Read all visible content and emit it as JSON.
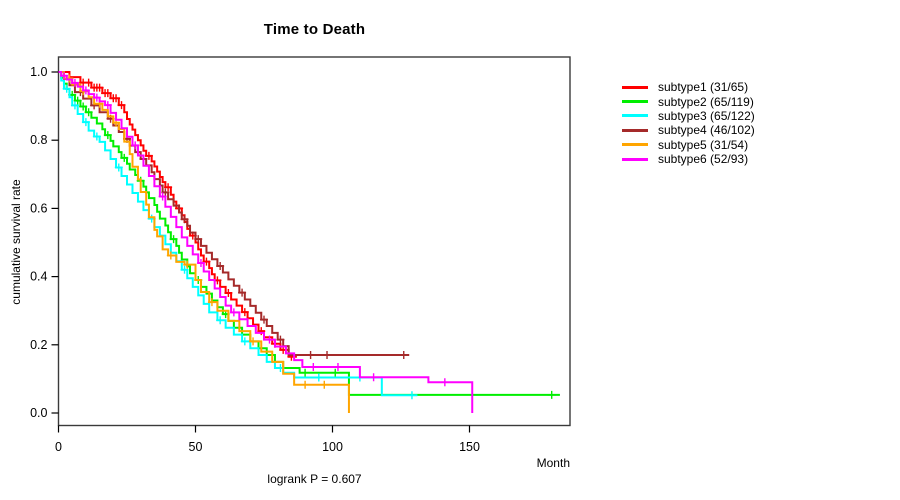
{
  "title": "Time to Death",
  "footnote": "logrank P = 0.607",
  "axes": {
    "x_label": "Month",
    "y_label": "cumulative survival rate"
  },
  "colors": {
    "subtype1": "#FF0000",
    "subtype2": "#00EE00",
    "subtype3": "#00FFFF",
    "subtype4": "#A52A2A",
    "subtype5": "#FFA500",
    "subtype6": "#FF00FF",
    "axis": "#3a3a3a",
    "text": "#000000",
    "background": "#ffffff"
  },
  "chart_data": {
    "type": "line",
    "subtype": "kaplan-meier-step",
    "title": "Time to Death",
    "xlabel": "Month",
    "ylabel": "cumulative survival rate",
    "annotation": "logrank P = 0.607",
    "xlim": [
      0,
      186
    ],
    "ylim": [
      0,
      1.0
    ],
    "x_ticks": [
      0,
      50,
      100,
      150
    ],
    "y_ticks": [
      0.0,
      0.2,
      0.4,
      0.6,
      0.8,
      1.0
    ],
    "grid": false,
    "legend_position": "right",
    "series": [
      {
        "name": "subtype1 (31/65)",
        "color": "#FF0000",
        "points": [
          [
            0,
            1
          ],
          [
            4,
            0.985
          ],
          [
            8,
            0.969
          ],
          [
            12,
            0.954
          ],
          [
            16,
            0.938
          ],
          [
            19,
            0.923
          ],
          [
            22,
            0.903
          ],
          [
            24,
            0.882
          ],
          [
            25,
            0.862
          ],
          [
            26,
            0.846
          ],
          [
            27,
            0.831
          ],
          [
            28,
            0.815
          ],
          [
            29,
            0.8
          ],
          [
            30,
            0.785
          ],
          [
            31,
            0.769
          ],
          [
            32,
            0.754
          ],
          [
            34,
            0.738
          ],
          [
            35,
            0.723
          ],
          [
            36,
            0.708
          ],
          [
            37,
            0.692
          ],
          [
            38,
            0.677
          ],
          [
            39,
            0.662
          ],
          [
            41,
            0.64
          ],
          [
            42,
            0.62
          ],
          [
            43,
            0.6
          ],
          [
            45,
            0.58
          ],
          [
            46,
            0.56
          ],
          [
            47,
            0.54
          ],
          [
            48,
            0.52
          ],
          [
            50,
            0.5
          ],
          [
            51,
            0.48
          ],
          [
            52,
            0.462
          ],
          [
            53,
            0.444
          ],
          [
            55,
            0.425
          ],
          [
            56,
            0.407
          ],
          [
            57,
            0.389
          ],
          [
            59,
            0.37
          ],
          [
            61,
            0.352
          ],
          [
            63,
            0.333
          ],
          [
            65,
            0.315
          ],
          [
            67,
            0.296
          ],
          [
            69,
            0.278
          ],
          [
            71,
            0.259
          ],
          [
            73,
            0.24
          ],
          [
            75,
            0.222
          ],
          [
            78,
            0.203
          ],
          [
            81,
            0.185
          ],
          [
            84,
            0.165
          ],
          [
            87,
            0.165
          ]
        ],
        "censors": [
          9,
          11,
          13,
          14,
          15,
          17,
          18,
          20,
          21,
          23,
          33,
          40,
          44,
          49,
          54,
          58,
          62,
          68,
          74,
          79,
          82,
          85
        ]
      },
      {
        "name": "subtype2 (65/119)",
        "color": "#00EE00",
        "points": [
          [
            0,
            1
          ],
          [
            1,
            0.983
          ],
          [
            2,
            0.966
          ],
          [
            3,
            0.95
          ],
          [
            4,
            0.933
          ],
          [
            6,
            0.916
          ],
          [
            8,
            0.899
          ],
          [
            10,
            0.882
          ],
          [
            12,
            0.866
          ],
          [
            14,
            0.849
          ],
          [
            16,
            0.832
          ],
          [
            17,
            0.815
          ],
          [
            19,
            0.798
          ],
          [
            20,
            0.782
          ],
          [
            22,
            0.765
          ],
          [
            23,
            0.748
          ],
          [
            25,
            0.731
          ],
          [
            26,
            0.714
          ],
          [
            28,
            0.698
          ],
          [
            29,
            0.681
          ],
          [
            31,
            0.664
          ],
          [
            32,
            0.647
          ],
          [
            33,
            0.63
          ],
          [
            35,
            0.61
          ],
          [
            36,
            0.59
          ],
          [
            37,
            0.57
          ],
          [
            39,
            0.55
          ],
          [
            40,
            0.53
          ],
          [
            41,
            0.51
          ],
          [
            43,
            0.49
          ],
          [
            44,
            0.47
          ],
          [
            45,
            0.45
          ],
          [
            47,
            0.43
          ],
          [
            48,
            0.41
          ],
          [
            50,
            0.39
          ],
          [
            52,
            0.37
          ],
          [
            54,
            0.35
          ],
          [
            56,
            0.33
          ],
          [
            58,
            0.31
          ],
          [
            60,
            0.29
          ],
          [
            62,
            0.27
          ],
          [
            64,
            0.25
          ],
          [
            67,
            0.23
          ],
          [
            70,
            0.21
          ],
          [
            73,
            0.19
          ],
          [
            76,
            0.17
          ],
          [
            79,
            0.15
          ],
          [
            82,
            0.132
          ],
          [
            88,
            0.118
          ],
          [
            106,
            0.053
          ],
          [
            183,
            0.053
          ]
        ],
        "censors": [
          5,
          7,
          9,
          11,
          18,
          24,
          30,
          42,
          51,
          61,
          74,
          90,
          101,
          180
        ]
      },
      {
        "name": "subtype3 (65/122)",
        "color": "#00FFFF",
        "points": [
          [
            0,
            1
          ],
          [
            1,
            0.975
          ],
          [
            2,
            0.951
          ],
          [
            4,
            0.926
          ],
          [
            5,
            0.902
          ],
          [
            7,
            0.877
          ],
          [
            9,
            0.853
          ],
          [
            11,
            0.828
          ],
          [
            13,
            0.811
          ],
          [
            15,
            0.795
          ],
          [
            17,
            0.77
          ],
          [
            19,
            0.745
          ],
          [
            21,
            0.72
          ],
          [
            23,
            0.695
          ],
          [
            25,
            0.67
          ],
          [
            27,
            0.645
          ],
          [
            29,
            0.62
          ],
          [
            31,
            0.595
          ],
          [
            33,
            0.57
          ],
          [
            35,
            0.545
          ],
          [
            37,
            0.52
          ],
          [
            39,
            0.495
          ],
          [
            41,
            0.47
          ],
          [
            43,
            0.445
          ],
          [
            45,
            0.42
          ],
          [
            47,
            0.395
          ],
          [
            49,
            0.37
          ],
          [
            51,
            0.345
          ],
          [
            53,
            0.32
          ],
          [
            55,
            0.295
          ],
          [
            58,
            0.272
          ],
          [
            61,
            0.25
          ],
          [
            64,
            0.23
          ],
          [
            67,
            0.21
          ],
          [
            70,
            0.19
          ],
          [
            73,
            0.17
          ],
          [
            76,
            0.15
          ],
          [
            79,
            0.132
          ],
          [
            82,
            0.118
          ],
          [
            86,
            0.104
          ],
          [
            118,
            0.052
          ],
          [
            131,
            0.052
          ]
        ],
        "censors": [
          3,
          6,
          10,
          14,
          22,
          34,
          46,
          59,
          68,
          81,
          95,
          110,
          129
        ]
      },
      {
        "name": "subtype4 (46/102)",
        "color": "#A52A2A",
        "points": [
          [
            0,
            1
          ],
          [
            2,
            0.98
          ],
          [
            4,
            0.961
          ],
          [
            6,
            0.941
          ],
          [
            9,
            0.922
          ],
          [
            12,
            0.902
          ],
          [
            15,
            0.882
          ],
          [
            18,
            0.863
          ],
          [
            20,
            0.843
          ],
          [
            22,
            0.824
          ],
          [
            24,
            0.804
          ],
          [
            26,
            0.784
          ],
          [
            28,
            0.765
          ],
          [
            30,
            0.745
          ],
          [
            32,
            0.726
          ],
          [
            34,
            0.706
          ],
          [
            35,
            0.686
          ],
          [
            37,
            0.667
          ],
          [
            38,
            0.647
          ],
          [
            40,
            0.627
          ],
          [
            42,
            0.608
          ],
          [
            44,
            0.588
          ],
          [
            45,
            0.568
          ],
          [
            47,
            0.549
          ],
          [
            48,
            0.529
          ],
          [
            50,
            0.51
          ],
          [
            52,
            0.49
          ],
          [
            54,
            0.47
          ],
          [
            56,
            0.451
          ],
          [
            58,
            0.431
          ],
          [
            60,
            0.412
          ],
          [
            62,
            0.392
          ],
          [
            64,
            0.373
          ],
          [
            66,
            0.353
          ],
          [
            68,
            0.333
          ],
          [
            70,
            0.314
          ],
          [
            72,
            0.294
          ],
          [
            74,
            0.274
          ],
          [
            76,
            0.255
          ],
          [
            78,
            0.235
          ],
          [
            80,
            0.215
          ],
          [
            82,
            0.196
          ],
          [
            84,
            0.17
          ],
          [
            128,
            0.17
          ]
        ],
        "censors": [
          8,
          13,
          19,
          25,
          31,
          39,
          46,
          51,
          59,
          67,
          75,
          81,
          92,
          98,
          126
        ]
      },
      {
        "name": "subtype5 (31/54)",
        "color": "#FFA500",
        "points": [
          [
            0,
            1
          ],
          [
            2,
            0.981
          ],
          [
            5,
            0.963
          ],
          [
            8,
            0.944
          ],
          [
            11,
            0.926
          ],
          [
            13,
            0.907
          ],
          [
            16,
            0.889
          ],
          [
            18,
            0.87
          ],
          [
            20,
            0.851
          ],
          [
            22,
            0.833
          ],
          [
            24,
            0.796
          ],
          [
            26,
            0.759
          ],
          [
            27,
            0.722
          ],
          [
            29,
            0.685
          ],
          [
            30,
            0.648
          ],
          [
            32,
            0.611
          ],
          [
            33,
            0.574
          ],
          [
            35,
            0.537
          ],
          [
            36,
            0.518
          ],
          [
            38,
            0.48
          ],
          [
            40,
            0.462
          ],
          [
            43,
            0.443
          ],
          [
            46,
            0.435
          ],
          [
            50,
            0.39
          ],
          [
            52,
            0.355
          ],
          [
            55,
            0.325
          ],
          [
            58,
            0.3
          ],
          [
            62,
            0.27
          ],
          [
            66,
            0.24
          ],
          [
            70,
            0.21
          ],
          [
            74,
            0.18
          ],
          [
            78,
            0.15
          ],
          [
            82,
            0.115
          ],
          [
            86,
            0.083
          ],
          [
            106,
            0.0
          ]
        ],
        "censors": [
          4,
          9,
          15,
          21,
          41,
          47,
          56,
          71,
          90,
          97
        ]
      },
      {
        "name": "subtype6 (52/93)",
        "color": "#FF00FF",
        "points": [
          [
            0,
            1
          ],
          [
            1,
            0.989
          ],
          [
            3,
            0.978
          ],
          [
            5,
            0.968
          ],
          [
            7,
            0.957
          ],
          [
            9,
            0.946
          ],
          [
            11,
            0.935
          ],
          [
            13,
            0.925
          ],
          [
            15,
            0.914
          ],
          [
            17,
            0.903
          ],
          [
            19,
            0.88
          ],
          [
            21,
            0.86
          ],
          [
            23,
            0.835
          ],
          [
            25,
            0.81
          ],
          [
            27,
            0.785
          ],
          [
            29,
            0.755
          ],
          [
            31,
            0.725
          ],
          [
            33,
            0.695
          ],
          [
            35,
            0.665
          ],
          [
            37,
            0.635
          ],
          [
            39,
            0.605
          ],
          [
            41,
            0.575
          ],
          [
            43,
            0.545
          ],
          [
            45,
            0.515
          ],
          [
            47,
            0.49
          ],
          [
            49,
            0.465
          ],
          [
            51,
            0.44
          ],
          [
            53,
            0.415
          ],
          [
            55,
            0.39
          ],
          [
            57,
            0.365
          ],
          [
            59,
            0.34
          ],
          [
            61,
            0.315
          ],
          [
            63,
            0.295
          ],
          [
            66,
            0.275
          ],
          [
            69,
            0.255
          ],
          [
            72,
            0.235
          ],
          [
            75,
            0.215
          ],
          [
            79,
            0.195
          ],
          [
            83,
            0.175
          ],
          [
            86,
            0.155
          ],
          [
            89,
            0.135
          ],
          [
            110,
            0.105
          ],
          [
            135,
            0.09
          ],
          [
            151,
            0.0
          ]
        ],
        "censors": [
          2,
          6,
          10,
          14,
          18,
          28,
          38,
          52,
          64,
          77,
          93,
          102,
          115,
          141
        ]
      }
    ]
  },
  "legend": {
    "items": [
      {
        "label": "subtype1 (31/65)",
        "color": "#FF0000"
      },
      {
        "label": "subtype2 (65/119)",
        "color": "#00EE00"
      },
      {
        "label": "subtype3 (65/122)",
        "color": "#00FFFF"
      },
      {
        "label": "subtype4 (46/102)",
        "color": "#A52A2A"
      },
      {
        "label": "subtype5 (31/54)",
        "color": "#FFA500"
      },
      {
        "label": "subtype6 (52/93)",
        "color": "#FF00FF"
      }
    ]
  }
}
